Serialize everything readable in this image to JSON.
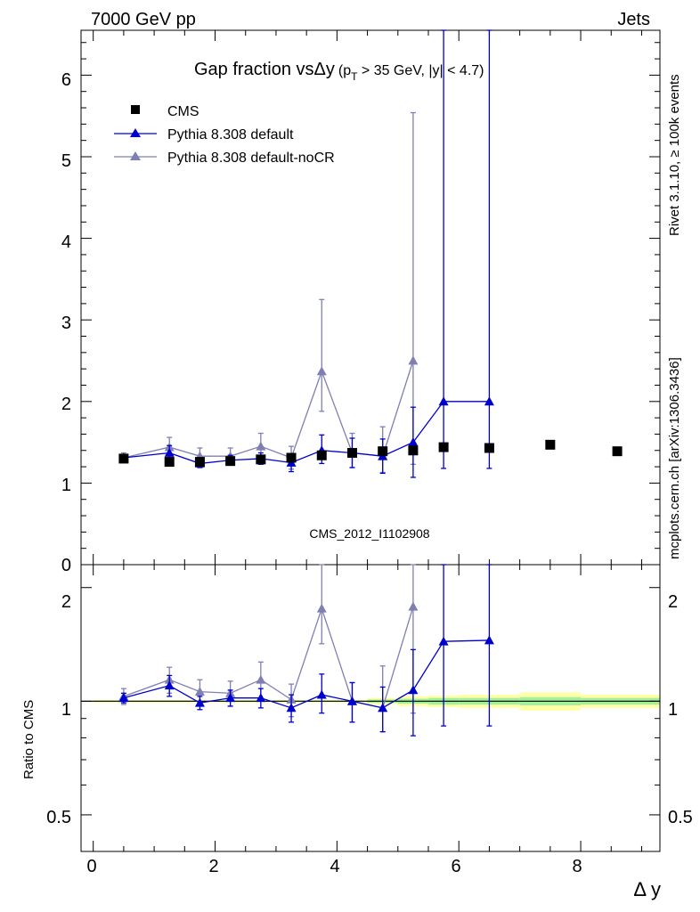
{
  "header": {
    "left": "7000 GeV pp",
    "right": "Jets"
  },
  "title": {
    "main": "Gap fraction vsΔy",
    "sub_p": "(p",
    "sub_T": "T",
    "sub_rest": " > 35 GeV,  |y| < 4.7)"
  },
  "side_labels": {
    "rivet": "Rivet 3.1.10, ≥ 100k events",
    "mcplots": "mcplots.cern.ch [arXiv:1306.3436]"
  },
  "watermark": "CMS_2012_I1102908",
  "legend": [
    {
      "name": "CMS",
      "color": "#000000",
      "marker": "square"
    },
    {
      "name": "Pythia 8.308 default",
      "color": "#0000cc",
      "marker": "triangle"
    },
    {
      "name": "Pythia 8.308 default-noCR",
      "color": "#7f7fb2",
      "marker": "triangle"
    }
  ],
  "axes": {
    "xlabel": "Δ y",
    "ratio_ylabel": "Ratio to CMS",
    "top_tick_labels": [
      "0",
      "1",
      "2",
      "3",
      "4",
      "5",
      "6"
    ],
    "ratio_tick_labels": [
      "0.5",
      "1",
      "2"
    ],
    "x_tick_labels": [
      "0",
      "2",
      "4",
      "6",
      "8"
    ]
  },
  "chart_data": {
    "type": "scatter",
    "x_range": [
      -0.2,
      9.3
    ],
    "top_ylim": [
      0,
      6.55
    ],
    "ratio_ylim": [
      0.4,
      2.3
    ],
    "ratio_scale": "log",
    "cms": {
      "x": [
        0.5,
        1.25,
        1.75,
        2.25,
        2.75,
        3.25,
        3.75,
        4.25,
        4.75,
        5.25,
        5.75,
        6.5,
        7.5,
        8.6
      ],
      "y": [
        1.3,
        1.26,
        1.26,
        1.27,
        1.29,
        1.31,
        1.34,
        1.37,
        1.39,
        1.4,
        1.44,
        1.43,
        1.47,
        1.39
      ]
    },
    "ratio_band_bins": [
      {
        "x": [
          0.0,
          4.5
        ],
        "inner": 0.004,
        "outer": 0.008
      },
      {
        "x": [
          4.5,
          5.0
        ],
        "inner": 0.01,
        "outer": 0.02
      },
      {
        "x": [
          5.0,
          5.5
        ],
        "inner": 0.015,
        "outer": 0.03
      },
      {
        "x": [
          5.5,
          6.0
        ],
        "inner": 0.02,
        "outer": 0.035
      },
      {
        "x": [
          6.0,
          7.0
        ],
        "inner": 0.02,
        "outer": 0.04
      },
      {
        "x": [
          7.0,
          8.0
        ],
        "inner": 0.025,
        "outer": 0.055
      },
      {
        "x": [
          8.0,
          9.3
        ],
        "inner": 0.02,
        "outer": 0.04
      }
    ],
    "series": [
      {
        "name": "Pythia 8.308 default",
        "color": "#0000cc",
        "x": [
          0.5,
          1.25,
          1.75,
          2.25,
          2.75,
          3.25,
          3.75,
          4.25,
          4.75,
          5.25,
          5.75,
          6.5
        ],
        "y": [
          1.31,
          1.37,
          1.24,
          1.28,
          1.3,
          1.25,
          1.4,
          1.37,
          1.33,
          1.5,
          2.0,
          2.0
        ],
        "err_low": [
          0.04,
          0.09,
          0.05,
          0.06,
          0.07,
          0.11,
          0.16,
          0.18,
          0.21,
          0.43,
          0.82,
          0.82
        ],
        "err_high": [
          0.04,
          0.09,
          0.05,
          0.06,
          0.07,
          0.11,
          0.19,
          0.18,
          0.21,
          0.43,
          4.7,
          4.7
        ],
        "ratio": [
          1.02,
          1.1,
          0.99,
          1.02,
          1.02,
          0.96,
          1.04,
          1.0,
          0.96,
          1.07,
          1.44,
          1.45
        ],
        "ratio_err_low": [
          0.03,
          0.07,
          0.04,
          0.05,
          0.06,
          0.08,
          0.11,
          0.12,
          0.13,
          0.26,
          0.58,
          0.59
        ],
        "ratio_err_high": [
          0.03,
          0.07,
          0.04,
          0.05,
          0.06,
          0.08,
          0.14,
          0.12,
          0.13,
          0.3,
          0.9,
          0.9
        ]
      },
      {
        "name": "Pythia 8.308 default-noCR",
        "color": "#7f7fb2",
        "x": [
          0.5,
          1.25,
          1.75,
          2.25,
          2.75,
          3.25,
          3.75,
          4.25,
          4.75,
          5.25
        ],
        "y": [
          1.31,
          1.44,
          1.33,
          1.33,
          1.45,
          1.31,
          2.37,
          1.37,
          1.33,
          2.5
        ],
        "err_low": [
          0.06,
          0.1,
          0.1,
          0.1,
          0.16,
          0.14,
          0.49,
          0.18,
          0.2,
          1.27
        ],
        "err_high": [
          0.06,
          0.12,
          0.1,
          0.1,
          0.16,
          0.14,
          0.88,
          0.24,
          0.36,
          3.04
        ],
        "ratio": [
          1.03,
          1.14,
          1.06,
          1.05,
          1.14,
          1.01,
          1.76,
          1.0,
          0.96,
          1.78
        ],
        "ratio_err_low": [
          0.05,
          0.09,
          0.08,
          0.08,
          0.13,
          0.1,
          0.34,
          0.12,
          0.13,
          0.85
        ],
        "ratio_err_high": [
          0.05,
          0.09,
          0.08,
          0.08,
          0.13,
          0.1,
          0.61,
          0.12,
          0.28,
          1.0
        ]
      }
    ]
  }
}
